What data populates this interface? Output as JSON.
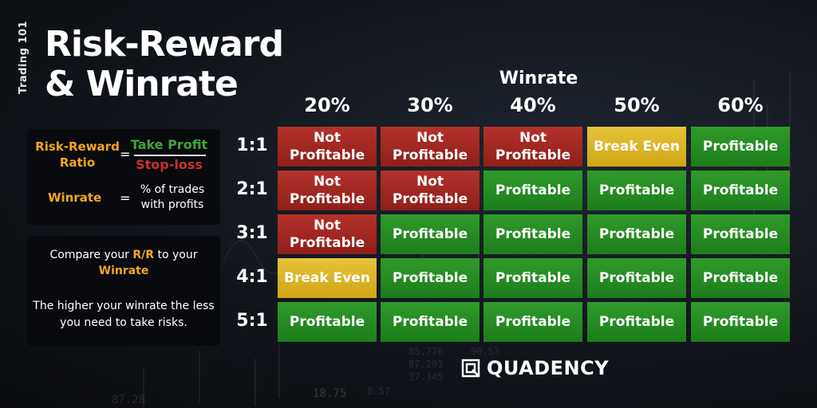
{
  "header": {
    "vertical_tag": "Trading 101",
    "title_line1": "Risk-Reward",
    "title_line2": "& Winrate"
  },
  "definitions": {
    "rr_label": "Risk-Reward Ratio",
    "equals": "=",
    "numerator": "Take Profit",
    "denominator": "Stop-loss",
    "winrate_label": "Winrate",
    "winrate_def": "% of trades with profits"
  },
  "advice": {
    "compare_pre": "Compare your ",
    "compare_rr": "R/R",
    "compare_mid": " to your ",
    "compare_wr": "Winrate",
    "higher": "The higher your winrate the less you need to take risks."
  },
  "table": {
    "axis_label": "Winrate",
    "columns": [
      "20%",
      "30%",
      "40%",
      "50%",
      "60%"
    ],
    "rows": [
      "1:1",
      "2:1",
      "3:1",
      "4:1",
      "5:1"
    ],
    "cells": [
      [
        "Not\nProfitable",
        "Not\nProfitable",
        "Not\nProfitable",
        "Break Even",
        "Profitable"
      ],
      [
        "Not\nProfitable",
        "Not\nProfitable",
        "Profitable",
        "Profitable",
        "Profitable"
      ],
      [
        "Not\nProfitable",
        "Profitable",
        "Profitable",
        "Profitable",
        "Profitable"
      ],
      [
        "Break Even",
        "Profitable",
        "Profitable",
        "Profitable",
        "Profitable"
      ],
      [
        "Profitable",
        "Profitable",
        "Profitable",
        "Profitable",
        "Profitable"
      ]
    ],
    "status": [
      [
        "red",
        "red",
        "red",
        "yellow",
        "green"
      ],
      [
        "red",
        "red",
        "green",
        "green",
        "green"
      ],
      [
        "red",
        "green",
        "green",
        "green",
        "green"
      ],
      [
        "yellow",
        "green",
        "green",
        "green",
        "green"
      ],
      [
        "green",
        "green",
        "green",
        "green",
        "green"
      ]
    ]
  },
  "colors": {
    "accent_orange": "#f5a623",
    "profit_green": "#2f9a2a",
    "loss_red": "#b3322a",
    "even_yellow": "#e6c33a"
  },
  "brand": {
    "name": "QUADENCY",
    "icon": "quadency-logo-icon"
  },
  "background_numbers": [
    "85.776",
    "90.53",
    "87.293",
    "37.345",
    "0.57",
    "18.75",
    "87.28"
  ]
}
